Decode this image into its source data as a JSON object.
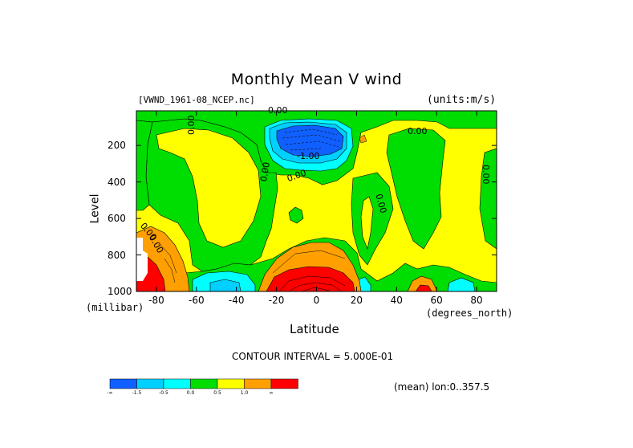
{
  "header": {
    "title": "Monthly Mean V wind",
    "dataset": "[VWND_1961-08_NCEP.nc]",
    "units": "(units:m/s)"
  },
  "axes": {
    "ylabel": "Level",
    "yunit": "(millibar)",
    "xlabel": "Latitude",
    "xunit": "(degrees_north)"
  },
  "footer": {
    "contour_interval": "CONTOUR INTERVAL = 5.000E-01",
    "mean_note": "(mean) lon:0..357.5"
  },
  "chart_data": {
    "type": "heatmap",
    "title": "Monthly Mean V wind",
    "xlabel": "Latitude",
    "ylabel": "Level",
    "xlim": [
      -90,
      90
    ],
    "ylim": [
      1000,
      10
    ],
    "x_ticks": [
      "-80",
      "-60",
      "-40",
      "-20",
      "0",
      "20",
      "40",
      "60",
      "80"
    ],
    "y_ticks": [
      "200",
      "400",
      "600",
      "800",
      "1000"
    ],
    "contour_interval": 0.5,
    "contour_labels": [
      "0.00",
      "0.00",
      "0.00",
      "-1.00",
      "0.00",
      "0.00",
      "0.00",
      "0.00",
      "0.00",
      "0.00"
    ],
    "colorbar": {
      "colors": [
        "#1060ff",
        "#00d0ff",
        "#00ffff",
        "#00dd00",
        "#ffff00",
        "#ffa000",
        "#ff0000"
      ],
      "labels": [
        "-∞",
        "-1.5",
        "-0.5",
        "0.0",
        "0.5",
        "1.0",
        "∞"
      ]
    }
  }
}
